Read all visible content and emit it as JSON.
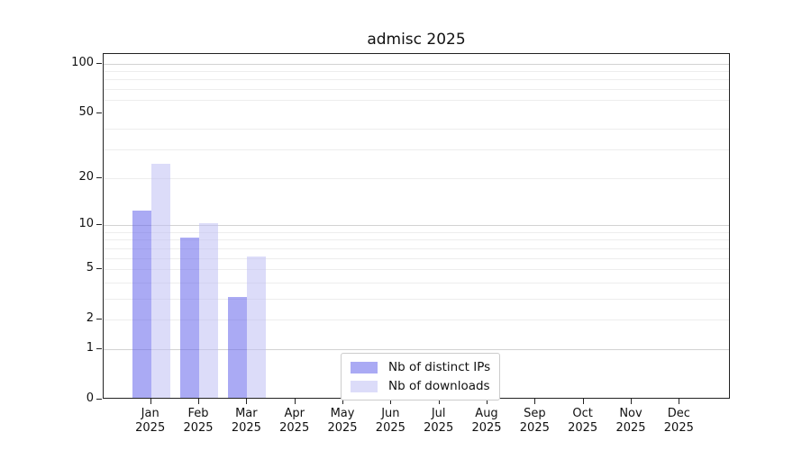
{
  "chart_data": {
    "type": "bar",
    "title": "admisc 2025",
    "categories": [
      {
        "month": "Jan",
        "year": "2025"
      },
      {
        "month": "Feb",
        "year": "2025"
      },
      {
        "month": "Mar",
        "year": "2025"
      },
      {
        "month": "Apr",
        "year": "2025"
      },
      {
        "month": "May",
        "year": "2025"
      },
      {
        "month": "Jun",
        "year": "2025"
      },
      {
        "month": "Jul",
        "year": "2025"
      },
      {
        "month": "Aug",
        "year": "2025"
      },
      {
        "month": "Sep",
        "year": "2025"
      },
      {
        "month": "Oct",
        "year": "2025"
      },
      {
        "month": "Nov",
        "year": "2025"
      },
      {
        "month": "Dec",
        "year": "2025"
      }
    ],
    "series": [
      {
        "name": "Nb of distinct IPs",
        "color": "#6464eb",
        "alpha": 0.55,
        "values": [
          12,
          8,
          3,
          0,
          0,
          0,
          0,
          0,
          0,
          0,
          0,
          0
        ]
      },
      {
        "name": "Nb of downloads",
        "color": "#c0c0f4",
        "alpha": 0.55,
        "values": [
          24,
          10,
          6,
          0,
          0,
          0,
          0,
          0,
          0,
          0,
          0,
          0
        ]
      }
    ],
    "yscale": "log1p",
    "ylim": [
      0,
      114
    ],
    "yticks": [
      0,
      1,
      2,
      5,
      10,
      20,
      50,
      100
    ],
    "grid_major": [
      1,
      10,
      100
    ],
    "grid_minor": [
      2,
      3,
      4,
      5,
      6,
      7,
      8,
      9,
      20,
      30,
      40,
      60,
      70,
      80,
      90
    ],
    "grid": "horizontal",
    "legend_position": "lower center",
    "colors": {
      "grid_minor": "#ededed",
      "grid_major": "#d2d2d2",
      "spine": "#222222",
      "text": "#111111",
      "background": "#ffffff"
    }
  }
}
